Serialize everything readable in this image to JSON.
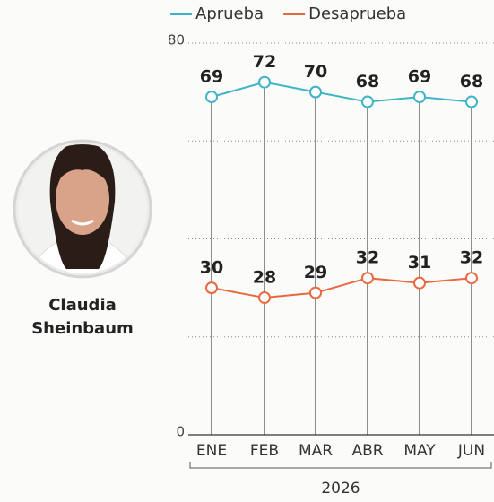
{
  "chart_data": {
    "type": "line",
    "categories": [
      "ENE",
      "FEB",
      "MAR",
      "ABR",
      "MAY",
      "JUN"
    ],
    "series": [
      {
        "name": "Aprueba",
        "color": "#3fb4c6",
        "values": [
          69,
          72,
          70,
          68,
          69,
          68
        ]
      },
      {
        "name": "Desaprueba",
        "color": "#e8693f",
        "values": [
          30,
          28,
          29,
          32,
          31,
          32
        ]
      }
    ],
    "ylim": [
      0,
      80
    ],
    "yticks": [
      0,
      {
        "value": 20,
        "label": null
      },
      {
        "value": 40,
        "label": null
      },
      {
        "value": 60,
        "label": null
      },
      80
    ],
    "grid": true,
    "xlabel": "2026",
    "annotations": [
      "Claudia",
      "Sheinbaum"
    ]
  }
}
